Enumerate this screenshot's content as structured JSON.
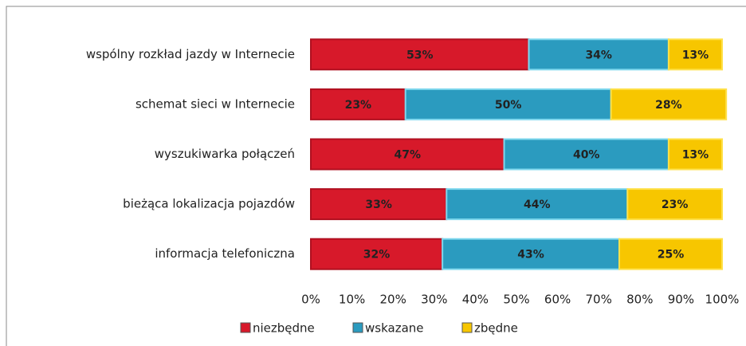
{
  "chart_data": {
    "type": "stacked-barh",
    "categories": [
      "wspólny rozkład jazdy w Internecie",
      "schemat sieci w Internecie",
      "wyszukiwarka połączeń",
      "bieżąca lokalizacja pojazdów",
      "informacja telefoniczna"
    ],
    "series": [
      {
        "name": "niezbędne",
        "color": "#d7192a",
        "values": [
          53,
          23,
          47,
          33,
          32
        ],
        "value_labels": [
          "53%",
          "23%",
          "47%",
          "33%",
          "32%"
        ]
      },
      {
        "name": "wskazane",
        "color": "#2b9bbf",
        "values": [
          34,
          50,
          40,
          44,
          43
        ],
        "value_labels": [
          "34%",
          "50%",
          "40%",
          "44%",
          "43%"
        ]
      },
      {
        "name": "zbędne",
        "color": "#f7c600",
        "values": [
          13,
          28,
          13,
          23,
          25
        ],
        "value_labels": [
          "13%",
          "28%",
          "13%",
          "23%",
          "25%"
        ]
      }
    ],
    "xlim": [
      0,
      100
    ],
    "xticks": [
      {
        "value": 0,
        "label": "0%"
      },
      {
        "value": 10,
        "label": "10%"
      },
      {
        "value": 20,
        "label": "20%"
      },
      {
        "value": 30,
        "label": "30%"
      },
      {
        "value": 40,
        "label": "40%"
      },
      {
        "value": 50,
        "label": "50%"
      },
      {
        "value": 60,
        "label": "60%"
      },
      {
        "value": 70,
        "label": "70%"
      },
      {
        "value": 80,
        "label": "80%"
      },
      {
        "value": 90,
        "label": "90%"
      },
      {
        "value": 100,
        "label": "100%"
      }
    ],
    "legend": "bottom",
    "grid": false
  }
}
